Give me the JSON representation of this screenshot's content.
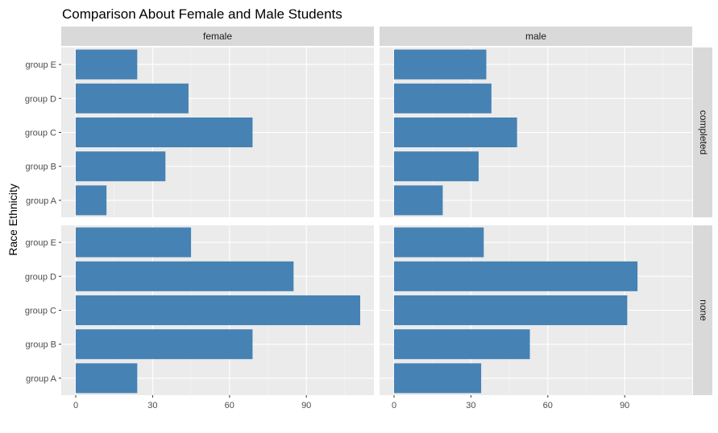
{
  "chart_data": {
    "type": "bar",
    "orientation": "horizontal",
    "title": "Comparison About Female and Male Students",
    "xlabel": "",
    "ylabel": "Race Ethnicity",
    "categories": [
      "group A",
      "group B",
      "group C",
      "group D",
      "group E"
    ],
    "xlim": [
      0,
      110
    ],
    "xticks": [
      0,
      30,
      60,
      90
    ],
    "grid": true,
    "bar_color": "#4682B4",
    "panel_background": "#EBEBEB",
    "strip_background": "#D9D9D9",
    "columns": [
      "female",
      "male"
    ],
    "rows": [
      "completed",
      "none"
    ],
    "panels": [
      {
        "column": "female",
        "row": "completed",
        "values": [
          12,
          35,
          69,
          44,
          24
        ]
      },
      {
        "column": "male",
        "row": "completed",
        "values": [
          19,
          33,
          48,
          38,
          36
        ]
      },
      {
        "column": "female",
        "row": "none",
        "values": [
          24,
          69,
          111,
          85,
          45
        ]
      },
      {
        "column": "male",
        "row": "none",
        "values": [
          34,
          53,
          91,
          95,
          35
        ]
      }
    ]
  }
}
